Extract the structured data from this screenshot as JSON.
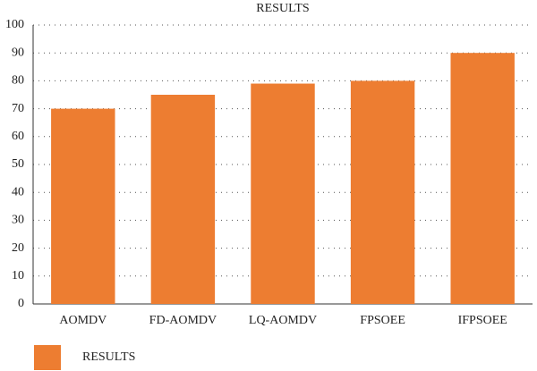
{
  "chart_data": {
    "type": "bar",
    "title": "RESULTS",
    "categories": [
      "AOMDV",
      "FD-AOMDV",
      "LQ-AOMDV",
      "FPSOEE",
      "IFPSOEE"
    ],
    "series": [
      {
        "name": "RESULTS",
        "color": "#ed7d31",
        "values": [
          70,
          75,
          79,
          80,
          90
        ]
      }
    ],
    "ylim": [
      0,
      100
    ],
    "yticks": [
      0,
      10,
      20,
      30,
      40,
      50,
      60,
      70,
      80,
      90,
      100
    ],
    "grid": true,
    "legend": "bottom-left"
  }
}
